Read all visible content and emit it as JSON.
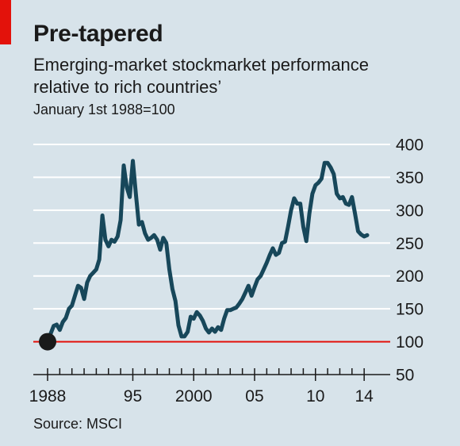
{
  "title": "Pre-tapered",
  "subtitle": "Emerging-market stockmarket performance relative to rich countries’",
  "unit_note": "January 1st 1988=100",
  "source": "Source: MSCI",
  "colors": {
    "background": "#d7e3ea",
    "line": "#17475a",
    "baseline": "#e3120b",
    "accent_tag": "#e3120b",
    "gridline": "#ffffff"
  },
  "chart_data": {
    "type": "line",
    "title": "Pre-tapered",
    "subtitle": "Emerging-market stockmarket performance relative to rich countries’",
    "ylabel": "January 1st 1988=100",
    "xlabel": "",
    "xlim": [
      1988,
      2014.25
    ],
    "ylim": [
      50,
      400
    ],
    "y_axis_side": "right",
    "yticks": [
      50,
      100,
      150,
      200,
      250,
      300,
      350,
      400
    ],
    "ytick_labels": [
      "50",
      "100",
      "150",
      "200",
      "250",
      "300",
      "350",
      "400"
    ],
    "xticks": [
      1988,
      1995,
      2000,
      2005,
      2010,
      2014
    ],
    "xtick_labels": [
      "1988",
      "95",
      "2000",
      "05",
      "10",
      "14"
    ],
    "grid": true,
    "baseline": 100,
    "start_marker": {
      "x": 1988,
      "y": 100
    },
    "series": [
      {
        "x": [
          1988.0,
          1988.25,
          1988.5,
          1988.75,
          1989.0,
          1989.25,
          1989.5,
          1989.75,
          1990.0,
          1990.25,
          1990.5,
          1990.75,
          1991.0,
          1991.25,
          1991.5,
          1991.75,
          1992.0,
          1992.25,
          1992.5,
          1992.75,
          1993.0,
          1993.25,
          1993.5,
          1993.75,
          1994.0,
          1994.25,
          1994.5,
          1994.75,
          1995.0,
          1995.25,
          1995.5,
          1995.75,
          1996.0,
          1996.25,
          1996.5,
          1996.75,
          1997.0,
          1997.25,
          1997.5,
          1997.75,
          1998.0,
          1998.25,
          1998.5,
          1998.75,
          1999.0,
          1999.25,
          1999.5,
          1999.75,
          2000.0,
          2000.25,
          2000.5,
          2000.75,
          2001.0,
          2001.25,
          2001.5,
          2001.75,
          2002.0,
          2002.25,
          2002.5,
          2002.75,
          2003.0,
          2003.25,
          2003.5,
          2003.75,
          2004.0,
          2004.25,
          2004.5,
          2004.75,
          2005.0,
          2005.25,
          2005.5,
          2005.75,
          2006.0,
          2006.25,
          2006.5,
          2006.75,
          2007.0,
          2007.25,
          2007.5,
          2007.75,
          2008.0,
          2008.25,
          2008.5,
          2008.75,
          2009.0,
          2009.25,
          2009.5,
          2009.75,
          2010.0,
          2010.25,
          2010.5,
          2010.75,
          2011.0,
          2011.25,
          2011.5,
          2011.75,
          2012.0,
          2012.25,
          2012.5,
          2012.75,
          2013.0,
          2013.25,
          2013.5,
          2013.75,
          2014.0,
          2014.25
        ],
        "y": [
          100,
          112,
          124,
          126,
          118,
          130,
          136,
          150,
          155,
          170,
          185,
          182,
          165,
          190,
          200,
          205,
          210,
          225,
          292,
          255,
          245,
          255,
          252,
          260,
          285,
          368,
          335,
          320,
          375,
          325,
          278,
          282,
          265,
          255,
          258,
          262,
          255,
          240,
          258,
          250,
          210,
          180,
          162,
          125,
          108,
          108,
          115,
          138,
          135,
          145,
          140,
          132,
          120,
          114,
          120,
          115,
          122,
          118,
          135,
          148,
          148,
          150,
          152,
          158,
          165,
          175,
          185,
          170,
          183,
          195,
          200,
          210,
          220,
          232,
          242,
          232,
          235,
          250,
          252,
          275,
          300,
          318,
          310,
          310,
          275,
          253,
          295,
          325,
          338,
          342,
          348,
          372,
          372,
          365,
          355,
          325,
          318,
          320,
          310,
          308,
          320,
          295,
          268,
          263,
          260,
          262
        ]
      }
    ]
  }
}
